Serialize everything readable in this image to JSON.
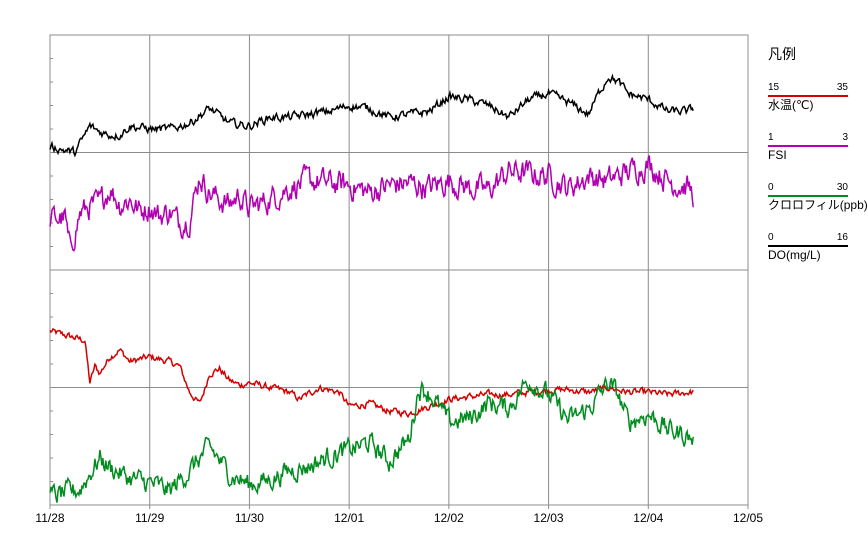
{
  "chart_data": {
    "type": "line",
    "title": "",
    "xlabel": "",
    "ylabel": "",
    "x_ticks": [
      "11/28",
      "11/29",
      "11/30",
      "12/01",
      "12/02",
      "12/03",
      "12/04",
      "12/05"
    ],
    "x_range_days": [
      0,
      7
    ],
    "grid": true,
    "panels": 4,
    "legend": {
      "title": "凡例",
      "placement": "right",
      "items": [
        {
          "name": "水温(℃)",
          "min": "15",
          "max": "35",
          "color": "#d40000"
        },
        {
          "name": "FSI",
          "min": "1",
          "max": "3",
          "color": "#b000b0"
        },
        {
          "name": "クロロフィル(ppb)",
          "min": "0",
          "max": "30",
          "color": "#008c1e"
        },
        {
          "name": "DO(mg/L)",
          "min": "0",
          "max": "16",
          "color": "#000000"
        }
      ]
    },
    "series": [
      {
        "name": "水温(℃)",
        "key": "temp",
        "color": "#d40000",
        "ylim": [
          15,
          35
        ],
        "x": [
          0,
          0.35,
          0.4,
          0.45,
          0.5,
          0.6,
          0.7,
          0.8,
          0.9,
          1.0,
          1.2,
          1.3,
          1.4,
          1.5,
          1.55,
          1.6,
          1.7,
          1.8,
          1.9,
          2.0,
          2.2,
          2.4,
          2.5,
          2.7,
          2.9,
          3.0,
          3.2,
          3.4,
          3.6,
          3.8,
          4.0,
          4.2,
          4.4,
          4.6,
          4.8,
          5.0,
          5.2,
          5.4,
          5.6,
          5.8,
          6.0,
          6.2,
          6.4,
          6.45
        ],
        "values": [
          22.4,
          22.0,
          20.2,
          20.9,
          20.6,
          21.3,
          21.6,
          21.1,
          21.2,
          21.3,
          21.1,
          20.9,
          19.8,
          19.3,
          19.9,
          20.6,
          20.8,
          20.3,
          20.1,
          20.2,
          20.0,
          19.8,
          19.5,
          20.0,
          19.8,
          19.2,
          19.3,
          19.0,
          18.9,
          19.2,
          19.5,
          19.6,
          19.7,
          19.7,
          19.8,
          19.9,
          19.9,
          19.8,
          20.0,
          19.8,
          19.8,
          19.7,
          19.8,
          19.8
        ]
      },
      {
        "name": "FSI",
        "key": "fsi",
        "color": "#b000b0",
        "ylim": [
          1,
          3
        ],
        "x": [
          0,
          0.15,
          0.2,
          0.3,
          0.4,
          0.5,
          0.6,
          0.7,
          0.8,
          0.9,
          1.0,
          1.1,
          1.2,
          1.3,
          1.4,
          1.5,
          1.6,
          1.7,
          1.8,
          1.9,
          2.0,
          2.2,
          2.4,
          2.6,
          2.8,
          3.0,
          3.2,
          3.4,
          3.6,
          3.8,
          4.0,
          4.2,
          4.4,
          4.6,
          4.8,
          5.0,
          5.2,
          5.4,
          5.6,
          5.8,
          6.0,
          6.2,
          6.4,
          6.45
        ],
        "values": [
          2.22,
          2.22,
          2.08,
          2.24,
          2.27,
          2.28,
          2.35,
          2.28,
          2.3,
          2.25,
          2.27,
          2.23,
          2.25,
          2.2,
          2.22,
          2.4,
          2.33,
          2.3,
          2.28,
          2.32,
          2.26,
          2.3,
          2.35,
          2.38,
          2.37,
          2.36,
          2.33,
          2.36,
          2.37,
          2.35,
          2.38,
          2.35,
          2.34,
          2.42,
          2.41,
          2.4,
          2.35,
          2.4,
          2.38,
          2.42,
          2.45,
          2.38,
          2.35,
          2.32
        ]
      },
      {
        "name": "クロロフィル(ppb)",
        "key": "chl",
        "color": "#008c1e",
        "ylim": [
          0,
          30
        ],
        "x": [
          0,
          0.3,
          0.5,
          0.6,
          0.8,
          1.0,
          1.2,
          1.4,
          1.6,
          1.8,
          2.0,
          2.2,
          2.4,
          2.6,
          2.8,
          3.0,
          3.2,
          3.4,
          3.6,
          3.7,
          3.8,
          4.0,
          4.2,
          4.4,
          4.6,
          4.8,
          5.0,
          5.2,
          5.4,
          5.6,
          5.7,
          5.8,
          6.0,
          6.2,
          6.4,
          6.45
        ],
        "values": [
          0.5,
          1.0,
          3.0,
          2.4,
          1.7,
          1.4,
          0.9,
          2.2,
          3.7,
          2.0,
          1.3,
          1.6,
          2.2,
          2.5,
          3.1,
          3.5,
          4.0,
          2.8,
          4.2,
          7.5,
          7.2,
          5.3,
          5.5,
          6.5,
          6.2,
          8.0,
          7.0,
          5.4,
          6.1,
          7.8,
          7.0,
          5.3,
          5.8,
          4.8,
          4.4,
          4.1
        ]
      },
      {
        "name": "DO(mg/L)",
        "key": "do",
        "color": "#000000",
        "ylim": [
          0,
          16
        ],
        "x": [
          0,
          0.25,
          0.4,
          0.5,
          0.6,
          0.7,
          0.8,
          1.0,
          1.2,
          1.4,
          1.6,
          1.8,
          2.0,
          2.2,
          2.4,
          2.6,
          2.8,
          3.0,
          3.2,
          3.4,
          3.6,
          3.8,
          4.0,
          4.2,
          4.4,
          4.6,
          4.8,
          5.0,
          5.2,
          5.4,
          5.5,
          5.6,
          5.7,
          5.8,
          6.0,
          6.2,
          6.4,
          6.45
        ],
        "values": [
          12.2,
          12.0,
          12.9,
          12.7,
          12.6,
          12.6,
          12.9,
          12.8,
          12.8,
          13.0,
          13.5,
          13.0,
          12.9,
          13.2,
          13.2,
          13.3,
          13.4,
          13.6,
          13.5,
          13.2,
          13.3,
          13.4,
          13.9,
          13.8,
          13.6,
          13.2,
          13.8,
          14.0,
          13.7,
          13.3,
          14.0,
          14.6,
          14.4,
          14.0,
          13.8,
          13.4,
          13.4,
          13.5
        ]
      }
    ]
  }
}
